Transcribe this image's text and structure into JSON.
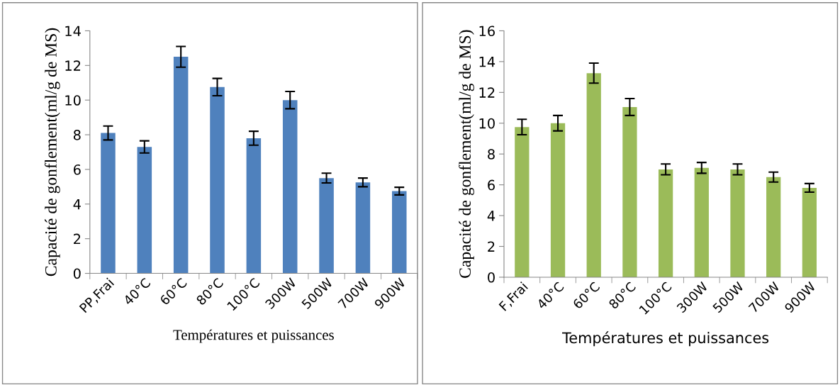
{
  "chart_data": [
    {
      "type": "bar",
      "xlabel": "Températures et puissances",
      "ylabel": "Capacité de gonflement(ml/g de MS)",
      "categories": [
        "PP,Frai",
        "40°C",
        "60°C",
        "80°C",
        "100°C",
        "300W",
        "500W",
        "700W",
        "900W"
      ],
      "series": [
        {
          "color": "#4f81bd",
          "values": [
            8.1,
            7.3,
            12.5,
            10.75,
            7.8,
            10.0,
            5.5,
            5.25,
            4.75
          ],
          "errors": [
            0.4,
            0.35,
            0.6,
            0.5,
            0.4,
            0.5,
            0.28,
            0.25,
            0.22
          ]
        }
      ],
      "ylim": [
        0,
        14
      ],
      "yticks": [
        0,
        2,
        4,
        6,
        8,
        10,
        12,
        14
      ],
      "grid": false,
      "legend": false
    },
    {
      "type": "bar",
      "xlabel": "Températures et puissances",
      "ylabel": "Capacité de gonflement(ml/g de MS)",
      "categories": [
        "F,Frai",
        "40°C",
        "60°C",
        "80°C",
        "100°C",
        "300W",
        "500W",
        "700W",
        "900W"
      ],
      "series": [
        {
          "color": "#9bbb59",
          "values": [
            9.75,
            10.0,
            13.25,
            11.05,
            7.0,
            7.1,
            7.0,
            6.5,
            5.8
          ],
          "errors": [
            0.5,
            0.5,
            0.65,
            0.55,
            0.35,
            0.35,
            0.35,
            0.32,
            0.28
          ]
        }
      ],
      "ylim": [
        0,
        16
      ],
      "yticks": [
        0,
        2,
        4,
        6,
        8,
        10,
        12,
        14,
        16
      ],
      "grid": false,
      "legend": false
    }
  ]
}
